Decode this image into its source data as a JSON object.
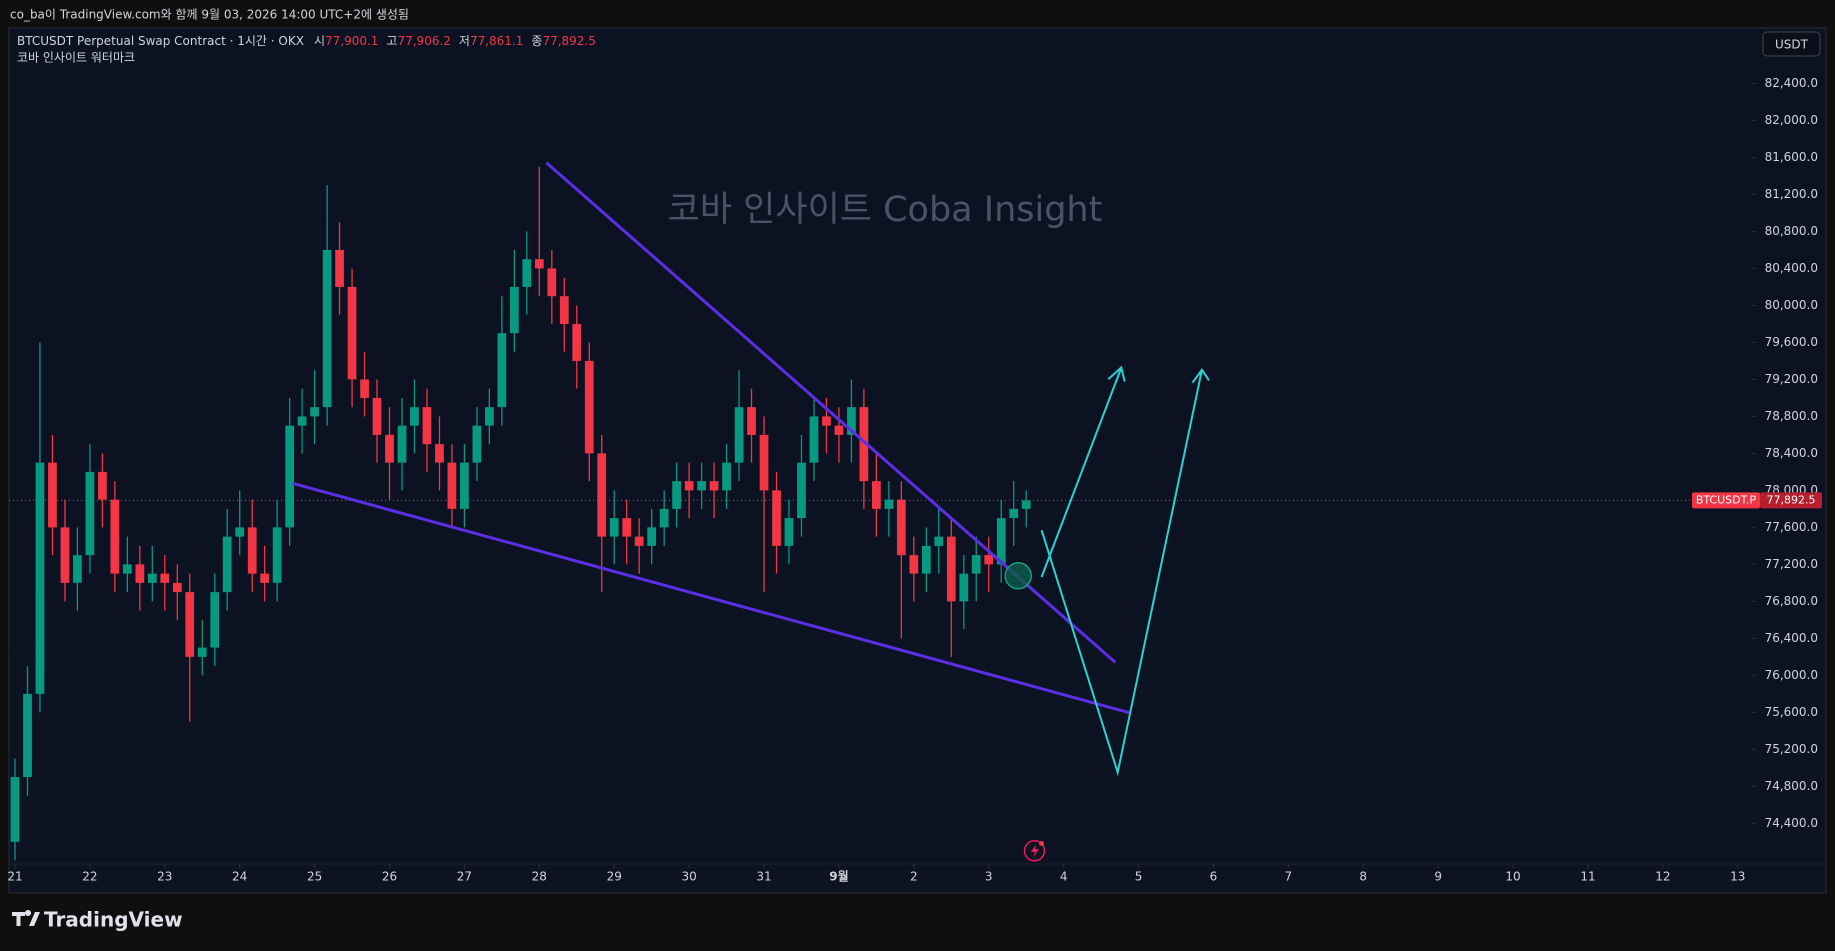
{
  "header": {
    "caption": "co_ba이 TradingView.com와 함께 9월 03, 2026 14:00 UTC+2에 생성됨"
  },
  "chart_data": {
    "type": "candlestick",
    "title": "BTCUSDT Perpetual Swap Contract · 1시간 · OKX",
    "subtitle": "코바 인사이트 워터마크",
    "watermark": "코바 인사이트 Coba Insight",
    "ohlc_legend": {
      "names": [
        "시",
        "고",
        "저",
        "종"
      ],
      "values": [
        77900.1,
        77906.2,
        77861.1,
        77892.5
      ],
      "value_labels": [
        "77,900.1",
        "77,906.2",
        "77,861.1",
        "77,892.5"
      ]
    },
    "currency": "USDT",
    "last_price": {
      "name": "BTCUSDT.P",
      "value": 77892.5,
      "label": "77,892.5"
    },
    "up_color": "#089981",
    "down_color": "#f23645",
    "x": [
      0,
      0.167,
      0.333,
      0.5,
      0.667,
      0.833,
      1,
      1.167,
      1.333,
      1.5,
      1.667,
      1.833,
      2,
      2.167,
      2.333,
      2.5,
      2.667,
      2.833,
      3,
      3.167,
      3.333,
      3.5,
      3.667,
      3.833,
      4,
      4.167,
      4.333,
      4.5,
      4.667,
      4.833,
      5,
      5.167,
      5.333,
      5.5,
      5.667,
      5.833,
      6,
      6.167,
      6.333,
      6.5,
      6.667,
      6.833,
      7,
      7.167,
      7.333,
      7.5,
      7.667,
      7.833,
      8,
      8.167,
      8.333,
      8.5,
      8.667,
      8.833,
      9,
      9.167,
      9.333,
      9.5,
      9.667,
      9.833,
      10,
      10.167,
      10.333,
      10.5,
      10.667,
      10.833,
      11,
      11.167,
      11.333,
      11.5,
      11.667,
      11.833,
      12,
      12.167,
      12.333,
      12.5,
      12.667,
      12.833,
      13,
      13.167,
      13.333,
      13.5
    ],
    "open": [
      74200,
      74900,
      75800,
      78300,
      77600,
      77000,
      77300,
      78200,
      77900,
      77100,
      77200,
      77000,
      77100,
      77000,
      76900,
      76200,
      76300,
      76900,
      77500,
      77600,
      77100,
      77000,
      77600,
      78700,
      78800,
      78900,
      80600,
      80200,
      79200,
      79000,
      78600,
      78300,
      78700,
      78900,
      78500,
      78300,
      77800,
      78300,
      78700,
      78900,
      79700,
      80200,
      80500,
      80400,
      80100,
      79800,
      79400,
      78400,
      77500,
      77700,
      77500,
      77400,
      77600,
      77800,
      78100,
      78000,
      78100,
      78000,
      78300,
      78900,
      78600,
      78000,
      77400,
      77700,
      78300,
      78800,
      78700,
      78600,
      78900,
      78100,
      77800,
      77900,
      77300,
      77100,
      77400,
      77500,
      76800,
      77100,
      77300,
      77200,
      77700,
      77800
    ],
    "high": [
      75100,
      76100,
      79600,
      78600,
      77900,
      77600,
      78500,
      78400,
      78100,
      77500,
      77400,
      77400,
      77300,
      77200,
      77100,
      76600,
      77100,
      77800,
      78000,
      77900,
      77400,
      77900,
      79000,
      79100,
      79300,
      81300,
      80900,
      80400,
      79500,
      79200,
      78900,
      79000,
      79200,
      79100,
      78800,
      78500,
      78500,
      78900,
      79100,
      80100,
      80600,
      80800,
      81500,
      80600,
      80300,
      80000,
      79600,
      78600,
      78000,
      77900,
      77700,
      77800,
      78000,
      78300,
      78300,
      78300,
      78300,
      78500,
      79300,
      79100,
      78800,
      78200,
      77900,
      78600,
      79000,
      79000,
      78900,
      79200,
      79100,
      78400,
      78100,
      78100,
      77500,
      77600,
      77800,
      77700,
      77300,
      77500,
      77500,
      77900,
      78100,
      78000
    ],
    "low": [
      74000,
      74700,
      75600,
      77300,
      76800,
      76700,
      77100,
      77600,
      76900,
      76900,
      76700,
      76800,
      76700,
      76600,
      75500,
      76000,
      76100,
      76700,
      77300,
      76900,
      76800,
      76800,
      77400,
      78400,
      78500,
      78700,
      79900,
      78900,
      78800,
      78300,
      77900,
      78000,
      78400,
      78200,
      78000,
      77600,
      77600,
      78100,
      78500,
      78700,
      79500,
      79900,
      80100,
      79800,
      79500,
      79100,
      78100,
      76900,
      77200,
      77200,
      77100,
      77200,
      77400,
      77600,
      77700,
      77800,
      77700,
      77800,
      78100,
      78300,
      76900,
      77100,
      77200,
      77500,
      78100,
      78400,
      78300,
      78300,
      77800,
      77500,
      77500,
      76400,
      76800,
      76900,
      77100,
      76200,
      76500,
      76800,
      76900,
      77000,
      77400,
      77600
    ],
    "close": [
      74900,
      75800,
      78300,
      77600,
      77000,
      77300,
      78200,
      77900,
      77100,
      77200,
      77000,
      77100,
      77000,
      76900,
      76200,
      76300,
      76900,
      77500,
      77600,
      77100,
      77000,
      77600,
      78700,
      78800,
      78900,
      80600,
      80200,
      79200,
      79000,
      78600,
      78300,
      78700,
      78900,
      78500,
      78300,
      77800,
      78300,
      78700,
      78900,
      79700,
      80200,
      80500,
      80400,
      80100,
      79800,
      79400,
      78400,
      77500,
      77700,
      77500,
      77400,
      77600,
      77800,
      78100,
      78000,
      78100,
      78000,
      78300,
      78900,
      78600,
      78000,
      77400,
      77700,
      78300,
      78800,
      78700,
      78600,
      78900,
      78100,
      77800,
      77900,
      77300,
      77100,
      77400,
      77500,
      76800,
      77100,
      77300,
      77200,
      77700,
      77800,
      77892.5
    ],
    "xlim": [
      -0.08,
      23.19
    ],
    "xticks": [
      {
        "value": 0,
        "label": "21"
      },
      {
        "value": 1,
        "label": "22"
      },
      {
        "value": 2,
        "label": "23"
      },
      {
        "value": 3,
        "label": "24"
      },
      {
        "value": 4,
        "label": "25"
      },
      {
        "value": 5,
        "label": "26"
      },
      {
        "value": 6,
        "label": "27"
      },
      {
        "value": 7,
        "label": "28"
      },
      {
        "value": 8,
        "label": "29"
      },
      {
        "value": 9,
        "label": "30"
      },
      {
        "value": 10,
        "label": "31"
      },
      {
        "value": 11,
        "label": "9월"
      },
      {
        "value": 12,
        "label": "2"
      },
      {
        "value": 13,
        "label": "3"
      },
      {
        "value": 14,
        "label": "4"
      },
      {
        "value": 15,
        "label": "5"
      },
      {
        "value": 16,
        "label": "6"
      },
      {
        "value": 17,
        "label": "7"
      },
      {
        "value": 18,
        "label": "8"
      },
      {
        "value": 19,
        "label": "9"
      },
      {
        "value": 20,
        "label": "10"
      },
      {
        "value": 21,
        "label": "11"
      },
      {
        "value": 22,
        "label": "12"
      },
      {
        "value": 23,
        "label": "13"
      }
    ],
    "ylim": [
      73960,
      83000
    ],
    "yticks": [
      {
        "value": 74400,
        "label": "74,400.0"
      },
      {
        "value": 74800,
        "label": "74,800.0"
      },
      {
        "value": 75200,
        "label": "75,200.0"
      },
      {
        "value": 75600,
        "label": "75,600.0"
      },
      {
        "value": 76000,
        "label": "76,000.0"
      },
      {
        "value": 76400,
        "label": "76,400.0"
      },
      {
        "value": 76800,
        "label": "76,800.0"
      },
      {
        "value": 77200,
        "label": "77,200.0"
      },
      {
        "value": 77600,
        "label": "77,600.0"
      },
      {
        "value": 78000,
        "label": "78,000.0"
      },
      {
        "value": 78400,
        "label": "78,400.0"
      },
      {
        "value": 78800,
        "label": "78,800.0"
      },
      {
        "value": 79200,
        "label": "79,200.0"
      },
      {
        "value": 79600,
        "label": "79,600.0"
      },
      {
        "value": 80000,
        "label": "80,000.0"
      },
      {
        "value": 80400,
        "label": "80,400.0"
      },
      {
        "value": 80800,
        "label": "80,800.0"
      },
      {
        "value": 81200,
        "label": "81,200.0"
      },
      {
        "value": 81600,
        "label": "81,600.0"
      },
      {
        "value": 82000,
        "label": "82,000.0"
      },
      {
        "value": 82400,
        "label": "82,400.0"
      }
    ]
  },
  "footer": {
    "brand": "TradingView"
  }
}
